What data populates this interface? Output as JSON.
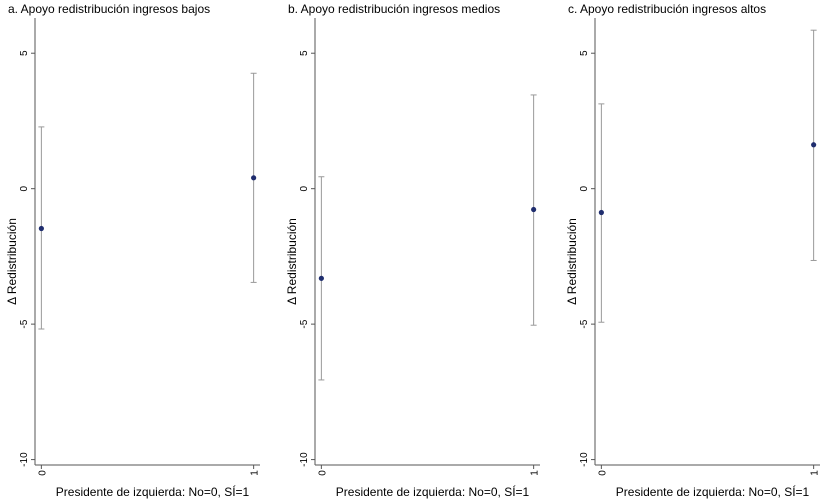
{
  "chart_data": [
    {
      "type": "errorbar",
      "title": "a. Apoyo redistribución ingresos bajos",
      "x_label": "Presidente de izquierda: No=0, SÍ=1",
      "y_label": "Δ Redistribución",
      "x": [
        0,
        1
      ],
      "values": [
        -1.47,
        0.4
      ],
      "lower": [
        -5.18,
        -3.46
      ],
      "upper": [
        2.28,
        4.26
      ],
      "color": "#1f2d6e",
      "bar_color": "#999999",
      "xlim": [
        -0.03,
        1.03
      ],
      "xticks": [
        0,
        1
      ],
      "ylim": [
        -10.2,
        6.3
      ],
      "yticks": [
        -10,
        -5,
        0,
        5
      ]
    },
    {
      "type": "errorbar",
      "title": "b. Apoyo redistribución ingresos medios",
      "x_label": "Presidente de izquierda: No=0, SÍ=1",
      "y_label": "Δ Redistribución",
      "x": [
        0,
        1
      ],
      "values": [
        -3.31,
        -0.77
      ],
      "lower": [
        -7.06,
        -5.04
      ],
      "upper": [
        0.44,
        3.46
      ],
      "color": "#1f2d6e",
      "bar_color": "#999999",
      "xlim": [
        -0.03,
        1.03
      ],
      "xticks": [
        0,
        1
      ],
      "ylim": [
        -10.2,
        6.3
      ],
      "yticks": [
        -10,
        -5,
        0,
        5
      ]
    },
    {
      "type": "errorbar",
      "title": "c. Apoyo redistribución ingresos altos",
      "x_label": "Presidente de izquierda: No=0, SÍ=1",
      "y_label": "Δ Redistribución",
      "x": [
        0,
        1
      ],
      "values": [
        -0.88,
        1.62
      ],
      "lower": [
        -4.93,
        -2.65
      ],
      "upper": [
        3.13,
        5.85
      ],
      "color": "#1f2d6e",
      "bar_color": "#999999",
      "xlim": [
        -0.03,
        1.03
      ],
      "xticks": [
        0,
        1
      ],
      "ylim": [
        -10.2,
        6.3
      ],
      "yticks": [
        -10,
        -5,
        0,
        5
      ]
    }
  ]
}
